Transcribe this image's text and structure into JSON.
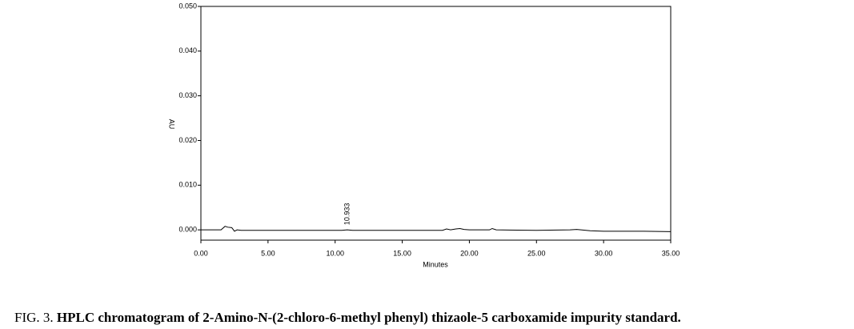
{
  "chart_data": {
    "type": "line",
    "ylabel": "AU",
    "xlabel": "Minutes",
    "x": [
      0,
      1.5,
      1.8,
      2.0,
      2.3,
      2.5,
      2.7,
      3.0,
      5,
      10.5,
      10.9,
      11.3,
      12,
      15,
      18,
      18.3,
      18.6,
      19,
      19.3,
      19.6,
      20,
      21.5,
      21.7,
      22,
      25,
      27.5,
      28,
      29,
      30,
      33,
      35
    ],
    "values": [
      0,
      0,
      0.0008,
      0.0006,
      0.0005,
      -0.0003,
      0,
      -0.0001,
      -0.0001,
      -0.0001,
      0,
      -0.0001,
      -0.0001,
      -0.0001,
      -0.0001,
      0.0002,
      0,
      0.0002,
      0.0003,
      0.0001,
      0,
      0,
      0.0003,
      0,
      -0.0001,
      0,
      0.0001,
      -0.0002,
      -0.0003,
      -0.0003,
      -0.0004
    ],
    "color": "#000000",
    "xlim": [
      0,
      35
    ],
    "ylim": [
      -0.0023,
      0.05
    ],
    "xticks": [
      {
        "value": 0,
        "label": "0.00"
      },
      {
        "value": 5,
        "label": "5.00"
      },
      {
        "value": 10,
        "label": "10.00"
      },
      {
        "value": 15,
        "label": "15.00"
      },
      {
        "value": 20,
        "label": "20.00"
      },
      {
        "value": 25,
        "label": "25.00"
      },
      {
        "value": 30,
        "label": "30.00"
      },
      {
        "value": 35,
        "label": "35.00"
      }
    ],
    "yticks": [
      {
        "value": 0,
        "label": "0.000"
      },
      {
        "value": 0.01,
        "label": "0.010"
      },
      {
        "value": 0.02,
        "label": "0.020"
      },
      {
        "value": 0.03,
        "label": "0.030"
      },
      {
        "value": 0.04,
        "label": "0.040"
      },
      {
        "value": 0.05,
        "label": "0.050"
      }
    ],
    "annotations": [
      {
        "x": 10.933,
        "label": "10.933"
      }
    ],
    "caption": {
      "prefix": "FIG. 3.",
      "text": "HPLC chromatogram of 2-Amino-N-(2-chloro-6-methyl phenyl) thizaole-5 carboxamide impurity standard."
    }
  }
}
